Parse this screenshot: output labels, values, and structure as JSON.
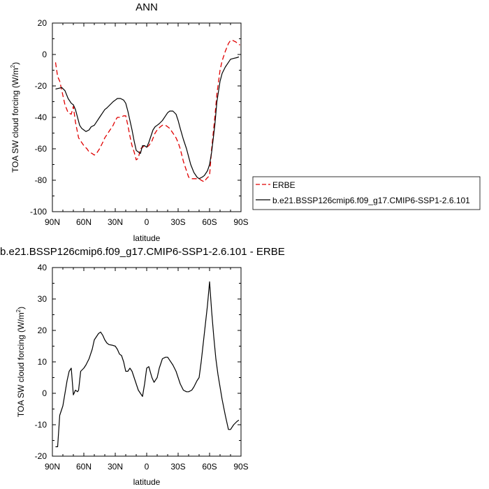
{
  "chart_data": [
    {
      "type": "line",
      "title": "ANN",
      "xlabel": "latitude",
      "ylabel_main": "TOA SW cloud forcing (W/m",
      "ylabel_sup": "2",
      "ylabel_tail": ")",
      "xlim": [
        90,
        -90
      ],
      "ylim": [
        -100,
        20
      ],
      "xticks": [
        90,
        60,
        30,
        0,
        -30,
        -60,
        -90
      ],
      "xticklabels": [
        "90N",
        "60N",
        "30N",
        "0",
        "30S",
        "60S",
        "90S"
      ],
      "yticks": [
        -100,
        -80,
        -60,
        -40,
        -20,
        0,
        20
      ],
      "yticklabels": [
        "-100",
        "-80",
        "-60",
        "-40",
        "-20",
        "0",
        "20"
      ],
      "grid": false,
      "legend_position": "right",
      "series": [
        {
          "name": "ERBE",
          "color": "#e00000",
          "dash": true,
          "x": [
            87,
            85,
            83,
            80,
            78,
            75,
            72,
            70,
            68,
            65,
            63,
            60,
            57,
            55,
            52,
            50,
            48,
            45,
            42,
            40,
            38,
            35,
            32,
            30,
            28,
            25,
            22,
            20,
            18,
            16,
            14,
            12,
            10,
            8,
            6,
            4,
            2,
            0,
            -2,
            -5,
            -8,
            -10,
            -13,
            -15,
            -18,
            -20,
            -22,
            -25,
            -28,
            -30,
            -32,
            -35,
            -38,
            -40,
            -42,
            -45,
            -48,
            -50,
            -52,
            -55,
            -57,
            -60,
            -62,
            -65,
            -67,
            -70,
            -72,
            -75,
            -78,
            -80,
            -82,
            -85,
            -87,
            -89
          ],
          "y": [
            -5,
            -14,
            -17,
            -26,
            -32,
            -37,
            -38,
            -33,
            -43,
            -53,
            -55,
            -58,
            -60,
            -62,
            -63,
            -64,
            -63,
            -60,
            -56,
            -53,
            -51,
            -48,
            -45,
            -42,
            -40,
            -40,
            -39,
            -39,
            -45,
            -52,
            -58,
            -62,
            -67,
            -66,
            -60,
            -59,
            -58,
            -59,
            -58,
            -55,
            -50,
            -48,
            -46,
            -45,
            -45,
            -46,
            -47,
            -50,
            -53,
            -56,
            -60,
            -68,
            -74,
            -78,
            -79,
            -79,
            -79,
            -79,
            -80,
            -81,
            -79,
            -77,
            -60,
            -40,
            -25,
            -10,
            -4,
            2,
            7,
            9,
            9,
            8,
            7,
            6
          ]
        },
        {
          "name": "b.e21.BSSP126cmip6.f09_g17.CMIP6-SSP1-2.6.101",
          "color": "#000000",
          "dash": false,
          "x": [
            87,
            84,
            81,
            78,
            75,
            72,
            70,
            68,
            66,
            64,
            62,
            60,
            58,
            55,
            53,
            50,
            48,
            45,
            42,
            40,
            38,
            35,
            32,
            30,
            28,
            25,
            22,
            20,
            18,
            16,
            14,
            12,
            10,
            8,
            6,
            4,
            2,
            0,
            -2,
            -4,
            -6,
            -8,
            -10,
            -12,
            -15,
            -18,
            -20,
            -22,
            -25,
            -28,
            -30,
            -32,
            -35,
            -38,
            -40,
            -42,
            -45,
            -48,
            -50,
            -53,
            -55,
            -58,
            -60,
            -62,
            -65,
            -67,
            -70,
            -72,
            -75,
            -78,
            -80,
            -83,
            -86,
            -88
          ],
          "y": [
            -22,
            -21.5,
            -21,
            -23,
            -28,
            -31,
            -32,
            -35,
            -40,
            -45,
            -47,
            -48,
            -49,
            -48,
            -46,
            -45,
            -43,
            -40,
            -37,
            -35,
            -34,
            -32,
            -30,
            -29,
            -28,
            -28,
            -29,
            -31,
            -36,
            -42,
            -48,
            -55,
            -61,
            -62,
            -63,
            -58,
            -58,
            -59,
            -56,
            -52,
            -48,
            -46,
            -45,
            -44,
            -42,
            -39,
            -37,
            -36,
            -36,
            -38,
            -42,
            -47,
            -54,
            -60,
            -65,
            -70,
            -75,
            -78,
            -79,
            -78,
            -77,
            -74,
            -70,
            -62,
            -45,
            -30,
            -17,
            -12,
            -8,
            -5,
            -3,
            -2.5,
            -2,
            -1.5
          ]
        }
      ]
    },
    {
      "type": "line",
      "title": "b.e21.BSSP126cmip6.f09_g17.CMIP6-SSP1-2.6.101 - ERBE",
      "xlabel": "latitude",
      "ylabel_main": "TOA SW cloud forcing (W/m",
      "ylabel_sup": "2",
      "ylabel_tail": ")",
      "xlim": [
        90,
        -90
      ],
      "ylim": [
        -20,
        40
      ],
      "xticks": [
        90,
        60,
        30,
        0,
        -30,
        -60,
        -90
      ],
      "xticklabels": [
        "90N",
        "60N",
        "30N",
        "0",
        "30S",
        "60S",
        "90S"
      ],
      "yticks": [
        -20,
        -10,
        0,
        10,
        20,
        30,
        40
      ],
      "yticklabels": [
        "-20",
        "-10",
        "0",
        "10",
        "20",
        "30",
        "40"
      ],
      "grid": false,
      "series": [
        {
          "color": "#000000",
          "dash": false,
          "x": [
            87,
            85,
            83,
            80,
            78,
            76,
            74,
            72,
            70,
            68,
            66,
            65,
            63,
            60,
            58,
            55,
            52,
            50,
            48,
            46,
            44,
            42,
            40,
            38,
            36,
            33,
            30,
            28,
            26,
            24,
            22,
            20,
            18,
            16,
            14,
            12,
            10,
            8,
            6,
            4,
            2,
            0,
            -2,
            -5,
            -7,
            -10,
            -12,
            -15,
            -18,
            -20,
            -22,
            -25,
            -28,
            -30,
            -32,
            -35,
            -38,
            -40,
            -43,
            -45,
            -48,
            -50,
            -52,
            -55,
            -58,
            -60,
            -62,
            -64,
            -66,
            -68,
            -70,
            -72,
            -75,
            -78,
            -80,
            -83,
            -86,
            -88
          ],
          "y": [
            -17,
            -17,
            -7,
            -4,
            0,
            4,
            7,
            8,
            -0.5,
            1,
            0.5,
            1,
            7,
            8,
            9,
            11,
            14,
            17,
            18,
            19,
            19.5,
            18.5,
            17,
            16,
            15.5,
            15.3,
            15,
            14,
            12.5,
            12,
            10,
            7,
            7,
            8,
            7,
            5,
            3,
            1,
            0,
            -1,
            3,
            8,
            8.5,
            5,
            3.5,
            5,
            8,
            11,
            11.5,
            11.5,
            10.5,
            9,
            7,
            5,
            3,
            1,
            0.5,
            0.5,
            1,
            2,
            4,
            5,
            10,
            19,
            28,
            35.5,
            26,
            18,
            11,
            6,
            2,
            -2,
            -7,
            -11.5,
            -11.5,
            -10,
            -9,
            -8.5
          ]
        }
      ]
    }
  ]
}
